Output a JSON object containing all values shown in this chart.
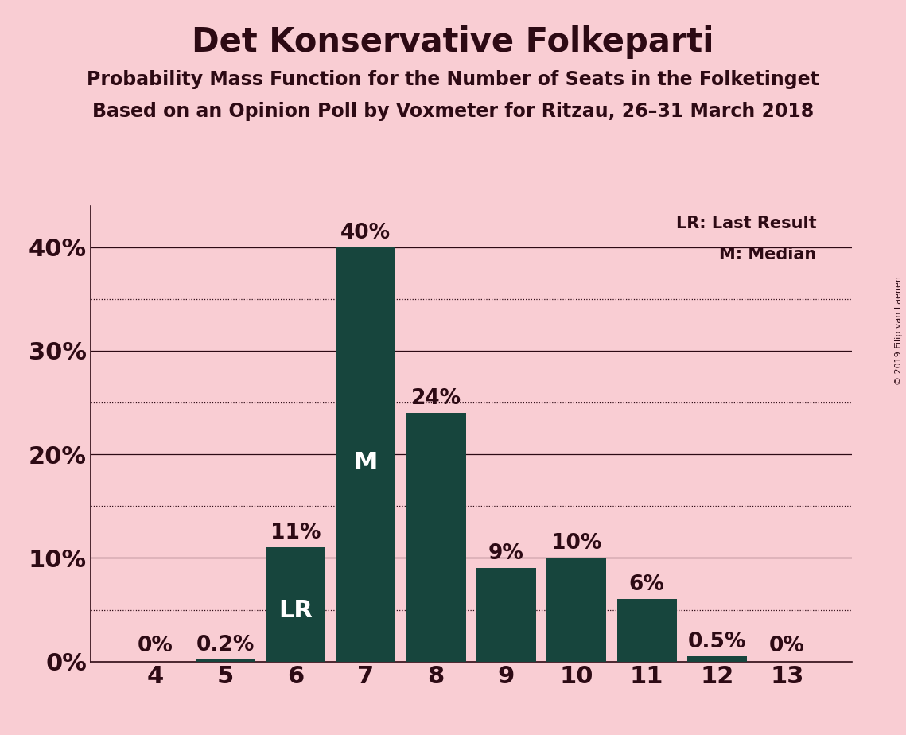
{
  "title": "Det Konservative Folkeparti",
  "subtitle1": "Probability Mass Function for the Number of Seats in the Folketinget",
  "subtitle2": "Based on an Opinion Poll by Voxmeter for Ritzau, 26–31 March 2018",
  "copyright": "© 2019 Filip van Laenen",
  "legend_lr": "LR: Last Result",
  "legend_m": "M: Median",
  "seats": [
    4,
    5,
    6,
    7,
    8,
    9,
    10,
    11,
    12,
    13
  ],
  "values": [
    0.0,
    0.2,
    11.0,
    40.0,
    24.0,
    9.0,
    10.0,
    6.0,
    0.5,
    0.0
  ],
  "bar_color": "#17453d",
  "background_color": "#f9cdd3",
  "text_color": "#2d0a14",
  "bar_labels": [
    "0%",
    "0.2%",
    "11%",
    "40%",
    "24%",
    "9%",
    "10%",
    "6%",
    "0.5%",
    "0%"
  ],
  "lr_seat": 6,
  "median_seat": 7,
  "ylim_max": 44,
  "yticks": [
    0,
    10,
    20,
    30,
    40
  ],
  "ytick_labels": [
    "0%",
    "10%",
    "20%",
    "30%",
    "40%"
  ],
  "dotted_lines": [
    5,
    15,
    25,
    35
  ],
  "solid_lines": [
    10,
    20,
    30,
    40
  ],
  "title_fontsize": 30,
  "subtitle_fontsize": 17,
  "bar_label_fontsize": 19,
  "axis_label_fontsize": 22,
  "inner_label_fontsize": 22,
  "legend_fontsize": 15
}
